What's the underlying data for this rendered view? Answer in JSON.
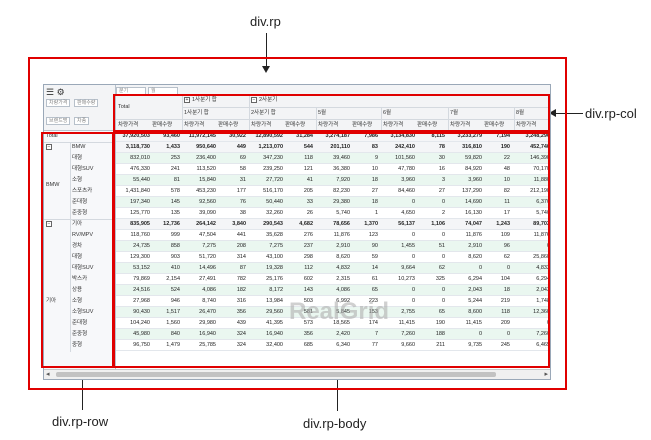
{
  "labels": {
    "rp": "div.rp",
    "rp_col": "div.rp-col",
    "rp_row": "div.rp-row",
    "rp_body": "div.rp-body"
  },
  "toolbar": {
    "filter_chips": [
      "분기",
      "월",
      "차량가격",
      "판매수량",
      "브랜드명",
      "차종"
    ]
  },
  "column_header": {
    "total": "Total",
    "q1_sum": "1사분기 합",
    "q2": "2사분기",
    "h1_sum": "2사분기 합",
    "months": [
      "5월",
      "6월",
      "7월",
      "8월"
    ],
    "measures": [
      "차량가격",
      "판매수량"
    ]
  },
  "row_header": {
    "total": "Total",
    "brands": [
      {
        "name": "BMW",
        "models": [
          "BMW",
          "대형",
          "대형SUV",
          "소형",
          "스포츠카",
          "준대형",
          "준중형"
        ]
      },
      {
        "name": "기아",
        "models": [
          "기아",
          "RV/MPV",
          "경차",
          "대형",
          "대형SUV",
          "박스카",
          "상용",
          "소형",
          "소형SUV",
          "준대형",
          "준중형",
          "중형"
        ]
      }
    ]
  },
  "body_rows": [
    [
      "37,920,503",
      "93,460",
      "11,972,145",
      "30,922",
      "12,890,592",
      "31,284",
      "3,274,187",
      "7,986",
      "3,134,830",
      "8,115",
      "3,233,279",
      "7,194",
      "3,248,296"
    ],
    [
      "3,118,730",
      "1,433",
      "950,640",
      "449",
      "1,213,070",
      "544",
      "201,110",
      "83",
      "242,410",
      "78",
      "316,810",
      "190",
      "452,740"
    ],
    [
      "832,010",
      "253",
      "236,400",
      "69",
      "347,230",
      "118",
      "39,460",
      "9",
      "101,560",
      "30",
      "59,820",
      "22",
      "146,390"
    ],
    [
      "476,330",
      "241",
      "113,520",
      "58",
      "239,250",
      "121",
      "36,380",
      "10",
      "47,780",
      "16",
      "84,920",
      "48",
      "70,170"
    ],
    [
      "55,440",
      "81",
      "15,840",
      "31",
      "27,720",
      "41",
      "7,920",
      "18",
      "3,960",
      "3",
      "3,960",
      "10",
      "11,880"
    ],
    [
      "1,431,840",
      "578",
      "453,230",
      "177",
      "516,170",
      "205",
      "82,230",
      "27",
      "84,460",
      "27",
      "137,290",
      "82",
      "212,190"
    ],
    [
      "197,340",
      "145",
      "92,560",
      "76",
      "50,440",
      "33",
      "29,380",
      "18",
      "0",
      "0",
      "14,690",
      "11",
      "6,370"
    ],
    [
      "125,770",
      "135",
      "39,090",
      "38",
      "32,260",
      "26",
      "5,740",
      "1",
      "4,650",
      "2",
      "16,130",
      "17",
      "5,740"
    ],
    [
      "835,905",
      "12,736",
      "264,142",
      "3,840",
      "290,543",
      "4,682",
      "78,656",
      "1,370",
      "56,137",
      "1,106",
      "74,047",
      "1,243",
      "89,703"
    ],
    [
      "118,760",
      "999",
      "47,504",
      "441",
      "35,628",
      "276",
      "11,876",
      "123",
      "0",
      "0",
      "11,876",
      "109",
      "11,876"
    ],
    [
      "24,735",
      "858",
      "7,275",
      "208",
      "7,275",
      "237",
      "2,910",
      "90",
      "1,455",
      "51",
      "2,910",
      "96",
      "0"
    ],
    [
      "129,300",
      "903",
      "51,720",
      "314",
      "43,100",
      "298",
      "8,620",
      "59",
      "0",
      "0",
      "8,620",
      "62",
      "25,860"
    ],
    [
      "53,152",
      "410",
      "14,496",
      "87",
      "19,328",
      "112",
      "4,832",
      "14",
      "9,664",
      "62",
      "0",
      "0",
      "4,832"
    ],
    [
      "79,869",
      "2,154",
      "27,491",
      "782",
      "25,176",
      "602",
      "2,315",
      "61",
      "10,273",
      "325",
      "6,294",
      "104",
      "6,294"
    ],
    [
      "24,516",
      "524",
      "4,086",
      "182",
      "8,172",
      "143",
      "4,086",
      "65",
      "0",
      "0",
      "2,043",
      "18",
      "2,043"
    ],
    [
      "27,968",
      "946",
      "8,740",
      "316",
      "13,984",
      "503",
      "6,992",
      "223",
      "0",
      "0",
      "5,244",
      "219",
      "1,748"
    ],
    [
      "90,430",
      "1,517",
      "26,470",
      "356",
      "29,560",
      "581",
      "5,845",
      "153",
      "2,755",
      "65",
      "8,600",
      "118",
      "12,360"
    ],
    [
      "104,240",
      "1,560",
      "29,980",
      "439",
      "41,395",
      "573",
      "18,565",
      "174",
      "11,415",
      "190",
      "11,415",
      "209",
      "0"
    ],
    [
      "45,980",
      "840",
      "16,940",
      "324",
      "16,940",
      "356",
      "2,420",
      "7",
      "7,260",
      "188",
      "0",
      "0",
      "7,260"
    ],
    [
      "96,750",
      "1,479",
      "25,785",
      "324",
      "32,400",
      "685",
      "6,340",
      "77",
      "9,660",
      "211",
      "9,735",
      "245",
      "6,465"
    ]
  ],
  "watermark": "RealGrid"
}
